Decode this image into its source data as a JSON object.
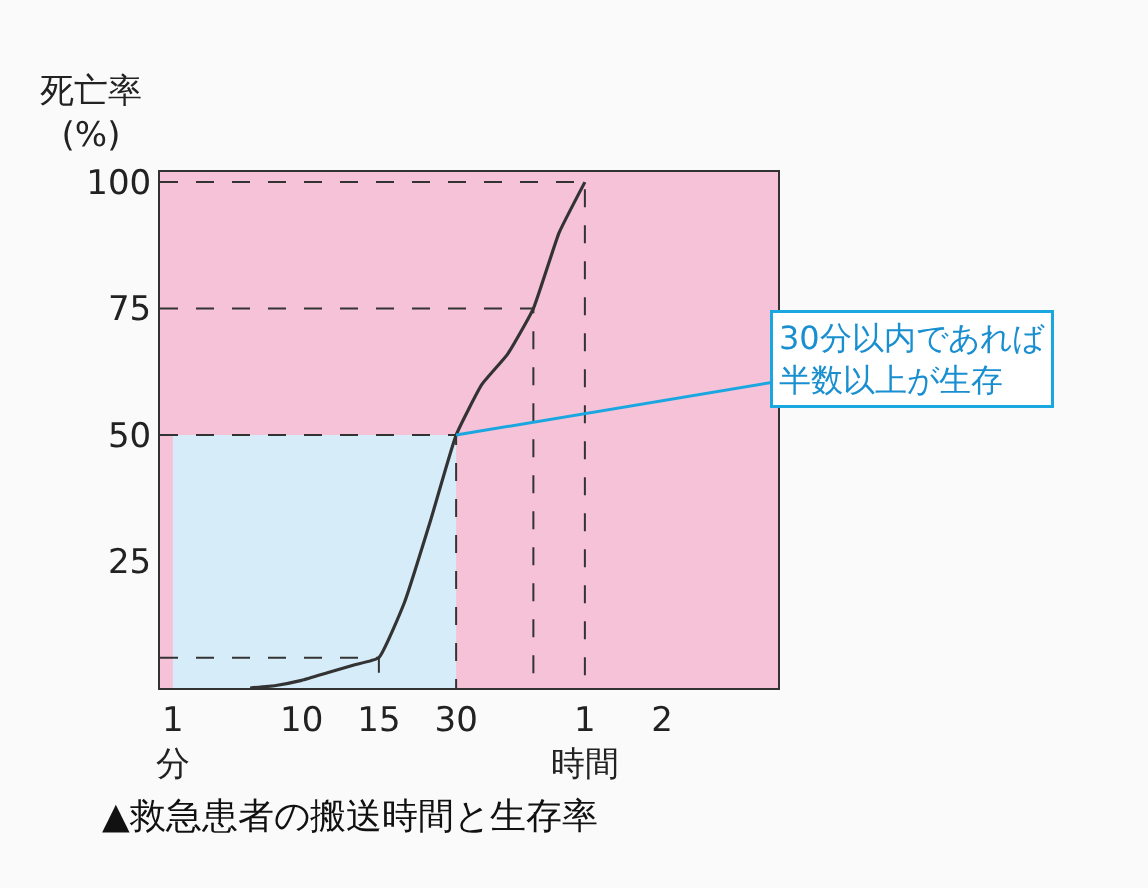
{
  "chart_data": {
    "type": "line",
    "title": "▲救急患者の搬送時間と生存率",
    "ylabel": "死亡率\n(%)",
    "categories": [
      "1\n分",
      null,
      null,
      null,
      null,
      "10",
      null,
      null,
      "15",
      null,
      null,
      "30",
      null,
      null,
      null,
      null,
      "1\n時間",
      null,
      null,
      "2",
      null,
      null,
      null,
      null
    ],
    "ylim": [
      0,
      102
    ],
    "yticks": [
      25,
      50,
      75,
      100
    ],
    "grid": false,
    "series": [
      {
        "type": "area",
        "color": "#d6ecf8",
        "values": [
          50,
          50,
          50,
          50,
          50,
          50,
          50,
          50,
          50,
          50,
          50,
          50,
          null,
          null,
          null,
          null,
          null,
          null,
          null,
          null,
          null,
          null,
          null,
          null
        ]
      },
      {
        "color": "#333333",
        "line_style": "solid",
        "values": [
          null,
          null,
          null,
          0,
          0.5,
          1.5,
          3,
          4.5,
          6,
          17,
          33,
          50,
          60,
          66,
          75,
          90,
          100,
          null,
          null,
          null,
          null,
          null,
          null,
          null
        ]
      }
    ],
    "ref_lines": [
      {
        "axis": "y",
        "value": 6,
        "color": "#333333",
        "line_style": "dashed"
      },
      {
        "axis": "y",
        "value": 50,
        "color": "#333333",
        "line_style": "dashed"
      },
      {
        "axis": "y",
        "value": 75,
        "color": "#333333",
        "line_style": "dashed"
      },
      {
        "axis": "y",
        "value": 100,
        "color": "#333333",
        "line_style": "dashed"
      }
    ],
    "annotations": [
      {
        "text": "30分以内であれば半数以上が生存",
        "x": "30",
        "y": 50
      }
    ]
  }
}
